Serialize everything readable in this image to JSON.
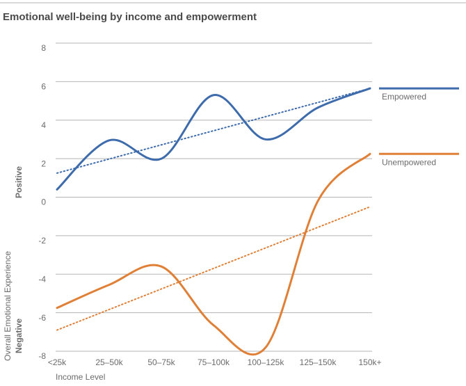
{
  "chart_data": {
    "type": "line",
    "title": "Emotional well-being by income and empowerment",
    "x_label": "Income Level",
    "y_label": "Overall Emotional Experience",
    "y_label_top": "Positive",
    "y_label_bottom": "Negative",
    "categories": [
      "<25k",
      "25–50k",
      "50–75k",
      "75–100k",
      "100–125k",
      "125–150k",
      "150k+"
    ],
    "series": [
      {
        "name": "Empowered",
        "color": "#3d6bab",
        "values": [
          0.4,
          2.95,
          2.0,
          5.3,
          3.0,
          4.65,
          5.65
        ],
        "trend": [
          1.25,
          5.65
        ]
      },
      {
        "name": "Unempowered",
        "color": "#e07f36",
        "values": [
          -5.75,
          -4.55,
          -3.6,
          -6.65,
          -7.8,
          -0.2,
          2.25
        ],
        "trend": [
          -6.9,
          -0.5
        ]
      }
    ],
    "ylim": [
      -8,
      8
    ],
    "yticks": [
      8,
      6,
      4,
      2,
      0,
      -2,
      -4,
      -6,
      -8
    ],
    "grid": true
  }
}
